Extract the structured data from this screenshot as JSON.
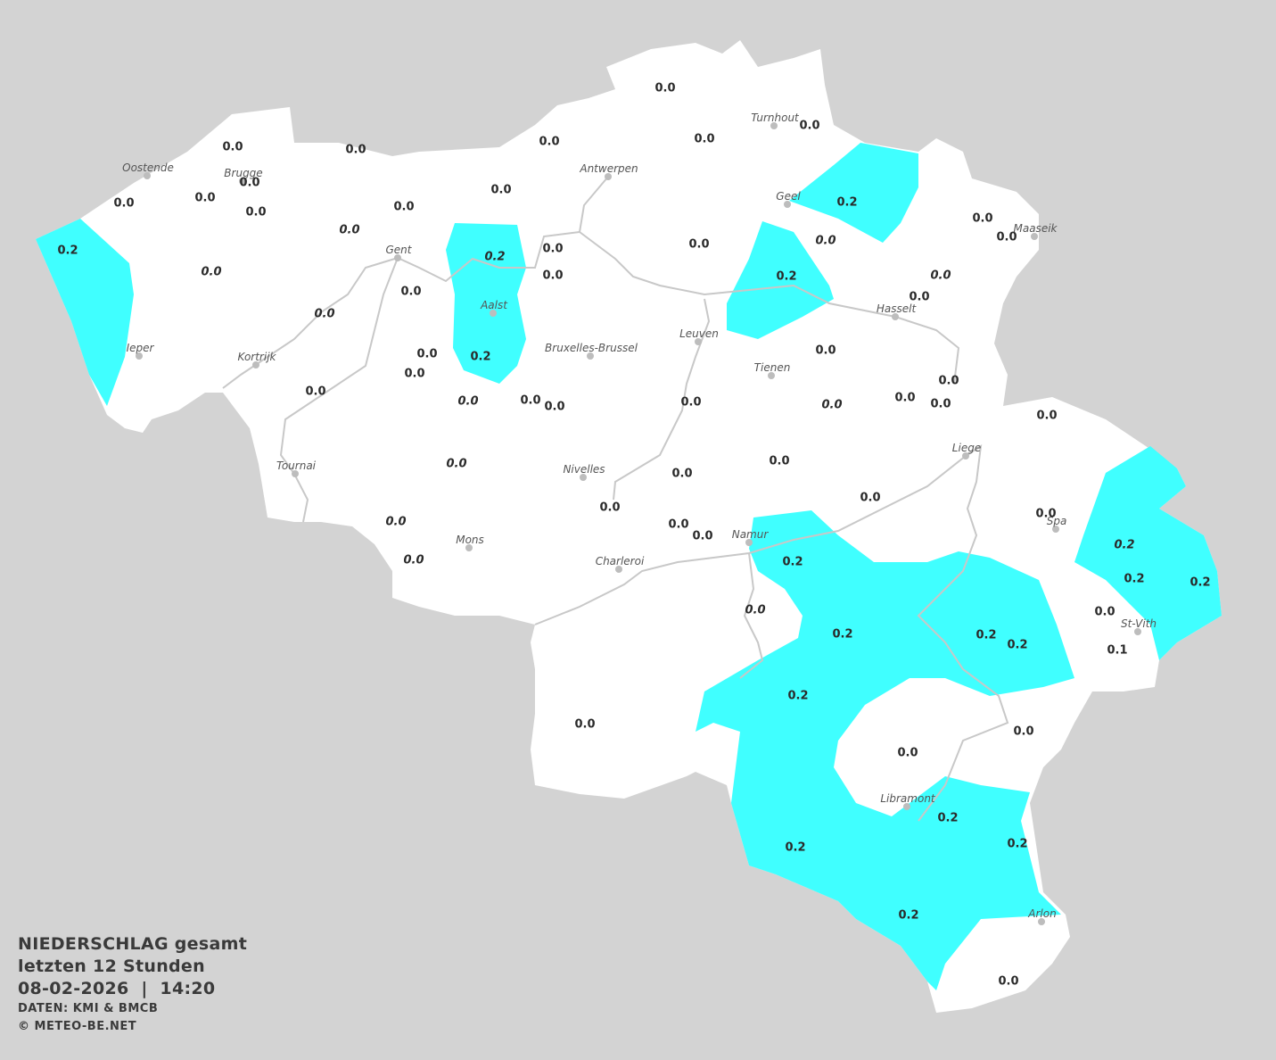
{
  "legend": {
    "title": "NIEDERSCHLAG gesamt",
    "period": "letzten 12 Stunden",
    "datetime": "08-02-2026  |  14:20",
    "source": "DATEN: KMI & BMCB",
    "copyright": "© METEO-BE.NET"
  },
  "colors": {
    "background": "#d3d3d3",
    "land": "#ffffff",
    "precip_0_2": "#40ffff",
    "rivers": "#c8c8c8",
    "text": "#2a2a2a"
  },
  "cities": [
    "Oostende",
    "Brugge",
    "Antwerpen",
    "Turnhout",
    "Geel",
    "Maaseik",
    "Gent",
    "Aalst",
    "Bruxelles-Brussel",
    "Leuven",
    "Hasselt",
    "Tienen",
    "Ieper",
    "Kortrijk",
    "Tournai",
    "Nivelles",
    "Liege",
    "Mons",
    "Charleroi",
    "Namur",
    "Spa",
    "St-Vith",
    "Libramont",
    "Arlon"
  ],
  "station_values": [
    {
      "v": "0.0"
    },
    {
      "v": "0.0"
    },
    {
      "v": "0.0"
    },
    {
      "v": "0.0"
    },
    {
      "v": "0.0"
    },
    {
      "v": "0.0"
    },
    {
      "v": "0.0"
    },
    {
      "v": "0.0",
      "italic": true
    },
    {
      "v": "0.0",
      "italic": true
    },
    {
      "v": "0.0"
    },
    {
      "v": "0.0"
    },
    {
      "v": "0.0"
    },
    {
      "v": "0.0"
    },
    {
      "v": "0.0"
    },
    {
      "v": "0.0"
    },
    {
      "v": "0.0",
      "italic": true
    },
    {
      "v": "0.0"
    },
    {
      "v": "0.0"
    },
    {
      "v": "0.0"
    },
    {
      "v": "0.0",
      "italic": true
    },
    {
      "v": "0.0"
    },
    {
      "v": "0.0"
    },
    {
      "v": "0.0",
      "italic": true
    },
    {
      "v": "0.0"
    },
    {
      "v": "0.0"
    },
    {
      "v": "0.0"
    },
    {
      "v": "0.0"
    },
    {
      "v": "0.0",
      "italic": true
    },
    {
      "v": "0.0"
    },
    {
      "v": "0.0"
    },
    {
      "v": "0.0"
    },
    {
      "v": "0.0"
    },
    {
      "v": "0.0"
    },
    {
      "v": "0.0"
    },
    {
      "v": "0.0"
    },
    {
      "v": "0.0",
      "italic": true
    },
    {
      "v": "0.0"
    },
    {
      "v": "0.0",
      "italic": true
    },
    {
      "v": "0.0"
    },
    {
      "v": "0.0"
    },
    {
      "v": "0.0"
    },
    {
      "v": "0.0"
    },
    {
      "v": "0.0"
    },
    {
      "v": "0.0"
    },
    {
      "v": "0.0",
      "italic": true
    },
    {
      "v": "0.0",
      "italic": true
    },
    {
      "v": "0.0"
    },
    {
      "v": "0.0",
      "italic": true
    },
    {
      "v": "0.0"
    },
    {
      "v": "0.0"
    },
    {
      "v": "0.0"
    },
    {
      "v": "0.0"
    },
    {
      "v": "0.0"
    },
    {
      "v": "0.2"
    },
    {
      "v": "0.2",
      "italic": true
    },
    {
      "v": "0.2"
    },
    {
      "v": "0.2"
    },
    {
      "v": "0.2"
    },
    {
      "v": "0.2"
    },
    {
      "v": "0.2"
    },
    {
      "v": "0.2"
    },
    {
      "v": "0.2"
    },
    {
      "v": "0.2"
    },
    {
      "v": "0.2",
      "italic": true
    },
    {
      "v": "0.2"
    },
    {
      "v": "0.2"
    },
    {
      "v": "0.2"
    },
    {
      "v": "0.2"
    },
    {
      "v": "0.2"
    },
    {
      "v": "0.2"
    },
    {
      "v": "0.1"
    }
  ]
}
